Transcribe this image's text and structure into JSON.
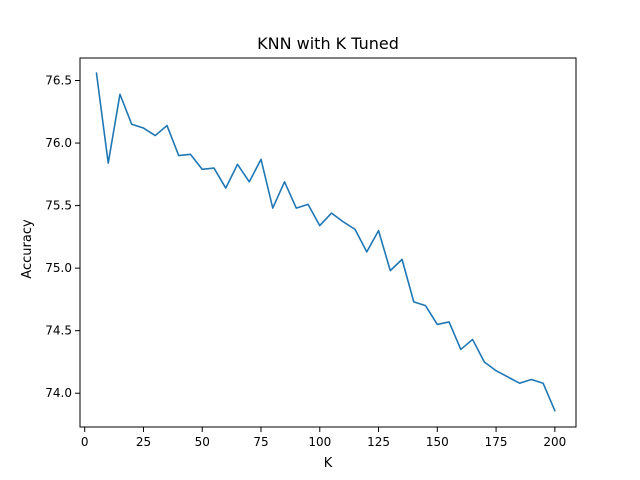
{
  "chart_data": {
    "type": "line",
    "title": "KNN with K Tuned",
    "xlabel": "K",
    "ylabel": "Accuracy",
    "xlim": [
      -2,
      209
    ],
    "ylim": [
      73.73,
      76.68
    ],
    "grid": false,
    "x_ticks": [
      0,
      25,
      50,
      75,
      100,
      125,
      150,
      175,
      200
    ],
    "x_tick_labels": [
      "0",
      "25",
      "50",
      "75",
      "100",
      "125",
      "150",
      "175",
      "200"
    ],
    "y_ticks": [
      74.0,
      74.5,
      75.0,
      75.5,
      76.0,
      76.5
    ],
    "y_tick_labels": [
      "74.0",
      "74.5",
      "75.0",
      "75.5",
      "76.0",
      "76.5"
    ],
    "series": [
      {
        "color": "#1f77b4",
        "x": [
          5,
          10,
          15,
          20,
          25,
          30,
          35,
          40,
          45,
          50,
          55,
          60,
          65,
          70,
          75,
          80,
          85,
          90,
          95,
          100,
          105,
          110,
          115,
          120,
          125,
          130,
          135,
          140,
          145,
          150,
          155,
          160,
          165,
          170,
          175,
          180,
          185,
          190,
          195,
          200
        ],
        "y": [
          76.56,
          75.84,
          76.39,
          76.15,
          76.12,
          76.06,
          76.14,
          75.9,
          75.91,
          75.79,
          75.8,
          75.64,
          75.83,
          75.69,
          75.87,
          75.48,
          75.69,
          75.48,
          75.51,
          75.34,
          75.44,
          75.37,
          75.31,
          75.13,
          75.3,
          74.98,
          75.07,
          74.73,
          74.7,
          74.55,
          74.57,
          74.35,
          74.43,
          74.25,
          74.18,
          74.13,
          74.08,
          74.11,
          74.08,
          73.86
        ]
      }
    ]
  }
}
